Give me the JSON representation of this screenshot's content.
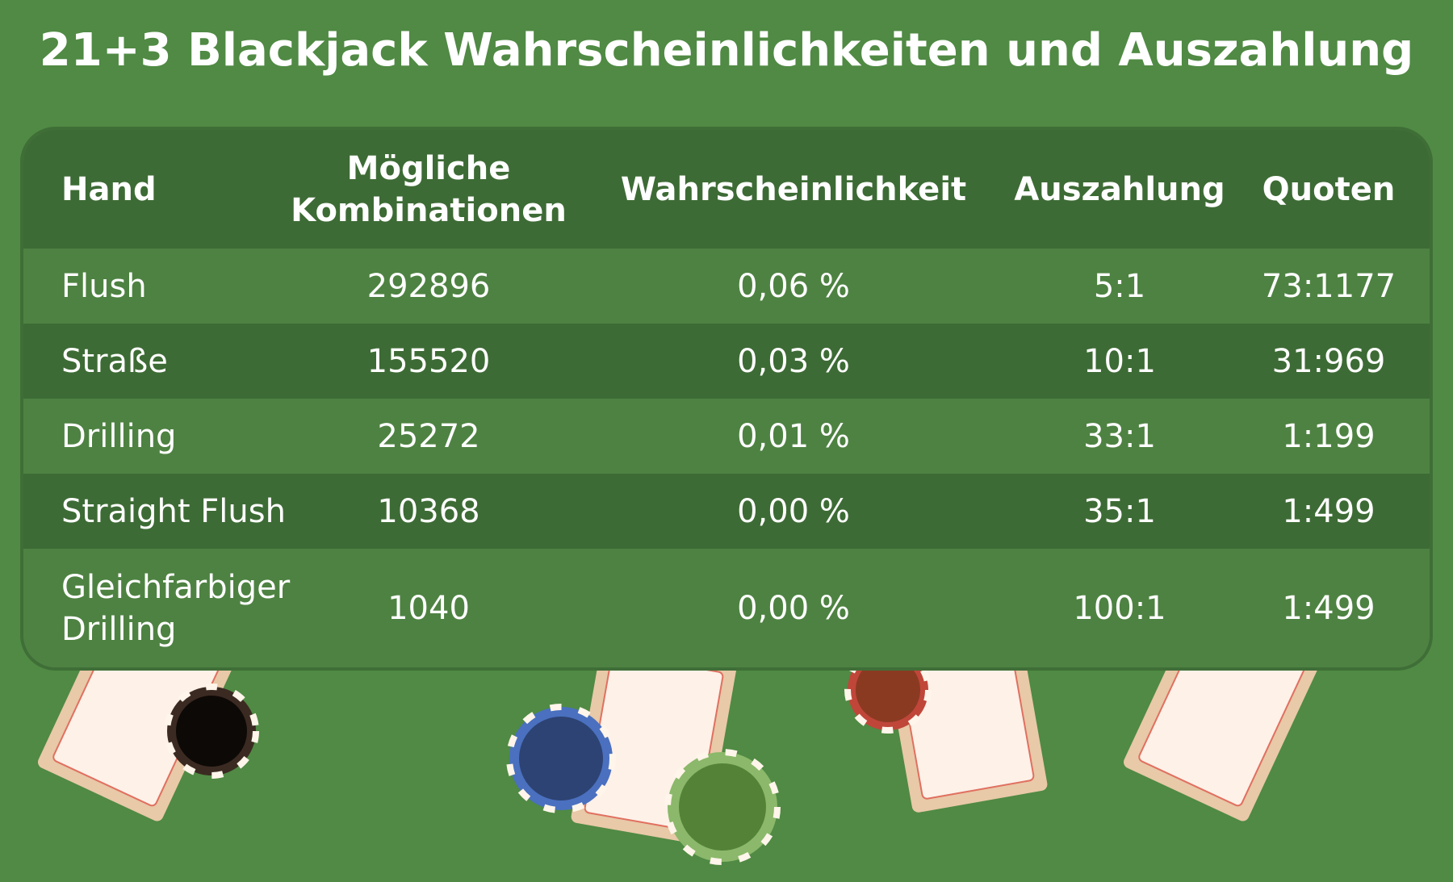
{
  "header": {
    "title": "21+3 Blackjack Wahrscheinlichkeiten und Auszahlung"
  },
  "table": {
    "columns": [
      "Hand",
      "Mögliche Kombinationen",
      "Wahrscheinlichkeit",
      "Auszahlung",
      "Quoten"
    ],
    "rows": [
      [
        "Flush",
        "292896",
        "0,06 %",
        "5:1",
        "73:1177"
      ],
      [
        "Straße",
        "155520",
        "0,03 %",
        "10:1",
        "31:969"
      ],
      [
        "Drilling",
        "25272",
        "0,01 %",
        "33:1",
        "1:199"
      ],
      [
        "Straight Flush",
        "10368",
        "0,00 %",
        "35:1",
        "1:499"
      ],
      [
        "Gleichfarbiger Drilling",
        "1040",
        "0,00 %",
        "100:1",
        "1:499"
      ]
    ]
  }
}
